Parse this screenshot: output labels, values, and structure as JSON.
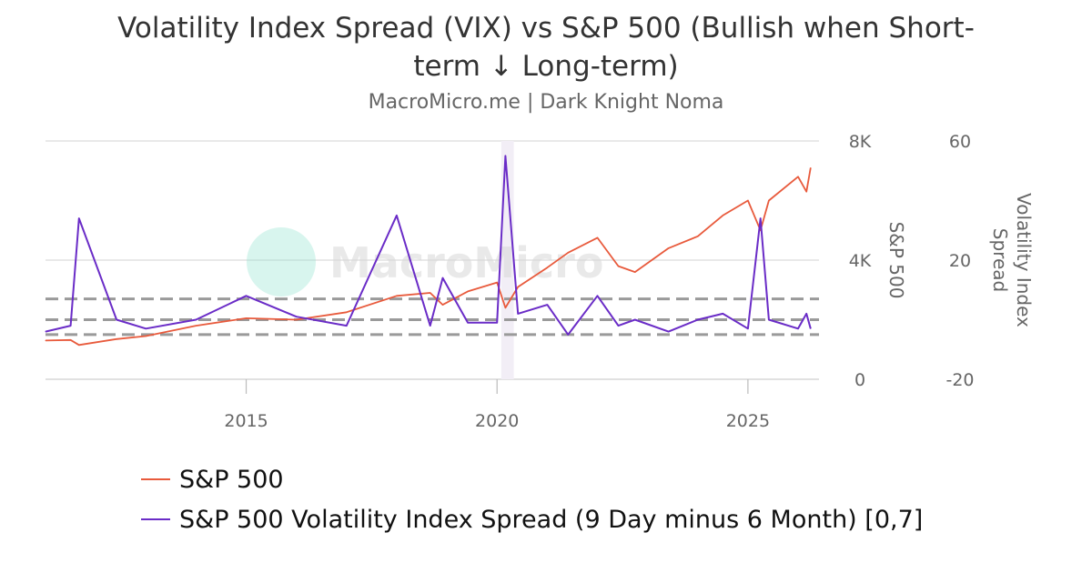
{
  "header": {
    "title": "Volatility Index Spread (VIX) vs S&P 500 (Bullish when Short-term ↓ Long-term)",
    "subtitle": "MacroMicro.me | Dark Knight Noma",
    "watermark": "MacroMicro"
  },
  "colors": {
    "sp500": "#e85a3c",
    "spread": "#6a2cc7",
    "grid": "#dcdcdc",
    "band_line": "#9a9a9a",
    "highlight": "#f2eef6",
    "watermark": "#8fe3cf"
  },
  "chart_data": {
    "type": "line",
    "x": [
      "2011-01",
      "2011-07",
      "2011-09",
      "2012-06",
      "2013-01",
      "2014-01",
      "2015-01",
      "2016-01",
      "2017-01",
      "2018-01",
      "2018-09",
      "2018-12",
      "2019-06",
      "2020-01",
      "2020-03",
      "2020-06",
      "2021-01",
      "2021-06",
      "2022-01",
      "2022-06",
      "2022-10",
      "2023-06",
      "2024-01",
      "2024-07",
      "2025-01",
      "2025-04",
      "2025-06",
      "2026-01",
      "2026-03",
      "2026-04"
    ],
    "x_ticks": [
      "2015",
      "2020",
      "2025"
    ],
    "xlim": [
      "2011-01",
      "2026-06"
    ],
    "series": [
      {
        "name": "S&P 500",
        "axis": "left",
        "values": [
          1300,
          1320,
          1150,
          1350,
          1450,
          1800,
          2050,
          2000,
          2250,
          2800,
          2900,
          2500,
          2950,
          3250,
          2400,
          3100,
          3750,
          4250,
          4750,
          3800,
          3600,
          4400,
          4800,
          5500,
          6000,
          5000,
          6000,
          6800,
          6300,
          7100
        ]
      },
      {
        "name": "S&P 500 Volatility Index Spread (9 Day minus 6 Month) [0,7]",
        "axis": "right",
        "values": [
          -4,
          -2,
          34,
          0,
          -3,
          0,
          8,
          1,
          -2,
          35,
          -2,
          14,
          -1,
          -1,
          55,
          2,
          5,
          -5,
          8,
          -2,
          0,
          -4,
          0,
          2,
          -3,
          34,
          0,
          -3,
          2,
          -3
        ]
      }
    ],
    "y_left": {
      "label": "S&P 500",
      "ticks": [
        "0",
        "4K",
        "8K"
      ],
      "range": [
        0,
        8000
      ]
    },
    "y_right": {
      "label": "Volatility Index Spread",
      "ticks": [
        "-20",
        "20",
        "60"
      ],
      "range": [
        -20,
        60
      ]
    },
    "reference_lines_right_axis": [
      -5,
      0,
      7
    ],
    "highlight_band": [
      "2020-02",
      "2020-05"
    ],
    "grid": true,
    "legend_position": "bottom"
  }
}
